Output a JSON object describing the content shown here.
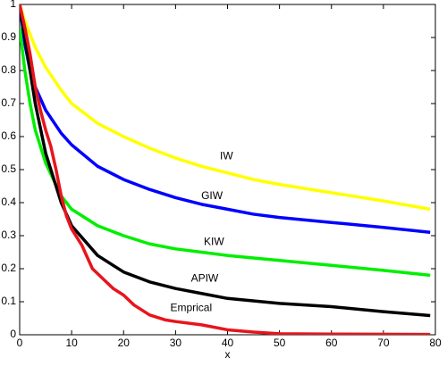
{
  "chart_data": {
    "type": "line",
    "xlabel": "x",
    "xlim": [
      0,
      80
    ],
    "ylim": [
      0,
      1
    ],
    "xticks": [
      0,
      10,
      20,
      30,
      40,
      50,
      60,
      70,
      80
    ],
    "yticks": [
      0,
      0.1,
      0.2,
      0.3,
      0.4,
      0.5,
      0.6,
      0.7,
      0.8,
      0.9,
      1
    ],
    "grid": false,
    "series": [
      {
        "name": "IW",
        "color": "#ffff00",
        "x": [
          0,
          1,
          2,
          3,
          5,
          8,
          10,
          15,
          20,
          25,
          30,
          35,
          40,
          45,
          50,
          60,
          70,
          79
        ],
        "values": [
          1,
          0.95,
          0.91,
          0.87,
          0.81,
          0.74,
          0.7,
          0.64,
          0.6,
          0.565,
          0.535,
          0.51,
          0.49,
          0.47,
          0.455,
          0.43,
          0.405,
          0.38
        ]
      },
      {
        "name": "GIW",
        "color": "#0000ff",
        "x": [
          0,
          1,
          2,
          3,
          5,
          8,
          10,
          15,
          20,
          25,
          30,
          35,
          40,
          45,
          50,
          60,
          70,
          79
        ],
        "values": [
          1,
          0.88,
          0.8,
          0.75,
          0.68,
          0.61,
          0.575,
          0.51,
          0.47,
          0.44,
          0.415,
          0.395,
          0.38,
          0.365,
          0.355,
          0.34,
          0.325,
          0.31
        ]
      },
      {
        "name": "KIW",
        "color": "#00ee00",
        "x": [
          0,
          1,
          2,
          3,
          5,
          8,
          10,
          15,
          20,
          25,
          30,
          35,
          40,
          50,
          60,
          70,
          79
        ],
        "values": [
          0.93,
          0.8,
          0.7,
          0.62,
          0.52,
          0.42,
          0.38,
          0.33,
          0.3,
          0.275,
          0.26,
          0.25,
          0.24,
          0.225,
          0.21,
          0.195,
          0.18
        ]
      },
      {
        "name": "APIW",
        "color": "#000000",
        "x": [
          0,
          1,
          2,
          3,
          5,
          8,
          10,
          15,
          20,
          25,
          30,
          35,
          40,
          50,
          60,
          70,
          79
        ],
        "values": [
          1,
          0.9,
          0.8,
          0.7,
          0.55,
          0.4,
          0.33,
          0.24,
          0.19,
          0.16,
          0.14,
          0.125,
          0.11,
          0.095,
          0.085,
          0.07,
          0.058
        ]
      },
      {
        "name": "Emprical",
        "color": "#e8141c",
        "x": [
          0,
          1,
          2,
          3,
          4,
          5,
          6,
          7,
          8,
          9,
          10,
          12,
          14,
          16,
          18,
          20,
          22,
          25,
          28,
          30,
          35,
          40,
          45,
          50,
          60,
          79
        ],
        "values": [
          1,
          0.93,
          0.85,
          0.75,
          0.68,
          0.62,
          0.57,
          0.5,
          0.42,
          0.36,
          0.32,
          0.27,
          0.2,
          0.17,
          0.14,
          0.12,
          0.09,
          0.06,
          0.045,
          0.04,
          0.03,
          0.015,
          0.008,
          0.003,
          0.002,
          0.001
        ]
      }
    ],
    "annotations": [
      {
        "text": "IW",
        "x": 39.8,
        "y": 0.54
      },
      {
        "text": "GIW",
        "x": 37,
        "y": 0.42
      },
      {
        "text": "KIW",
        "x": 37.4,
        "y": 0.28
      },
      {
        "text": "APIW",
        "x": 35.6,
        "y": 0.17
      },
      {
        "text": "Emprical",
        "x": 33,
        "y": 0.08
      }
    ]
  }
}
